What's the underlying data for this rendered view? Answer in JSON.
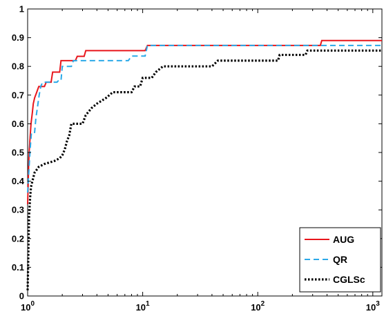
{
  "chart_data": {
    "type": "line",
    "title": "",
    "xlabel": "",
    "ylabel": "",
    "x_scale": "log",
    "xlim": [
      1,
      1200
    ],
    "ylim": [
      0,
      1
    ],
    "grid": false,
    "legend_position": "bottom-right",
    "x_ticks": [
      {
        "value": 1,
        "base": "10",
        "exp": "0"
      },
      {
        "value": 10,
        "base": "10",
        "exp": "1"
      },
      {
        "value": 100,
        "base": "10",
        "exp": "2"
      },
      {
        "value": 1000,
        "base": "10",
        "exp": "3"
      }
    ],
    "y_ticks": [
      {
        "value": 0,
        "label": "0"
      },
      {
        "value": 0.1,
        "label": "0.1"
      },
      {
        "value": 0.2,
        "label": "0.2"
      },
      {
        "value": 0.3,
        "label": "0.3"
      },
      {
        "value": 0.4,
        "label": "0.4"
      },
      {
        "value": 0.5,
        "label": "0.5"
      },
      {
        "value": 0.6,
        "label": "0.6"
      },
      {
        "value": 0.7,
        "label": "0.7"
      },
      {
        "value": 0.8,
        "label": "0.8"
      },
      {
        "value": 0.9,
        "label": "0.9"
      },
      {
        "value": 1,
        "label": "1"
      }
    ],
    "series": [
      {
        "name": "AUG",
        "color": "#e8151b",
        "dash": "solid",
        "points": [
          [
            1,
            0.32
          ],
          [
            1.01,
            0.38
          ],
          [
            1.02,
            0.45
          ],
          [
            1.03,
            0.5
          ],
          [
            1.05,
            0.55
          ],
          [
            1.07,
            0.6
          ],
          [
            1.1,
            0.64
          ],
          [
            1.12,
            0.67
          ],
          [
            1.15,
            0.69
          ],
          [
            1.2,
            0.71
          ],
          [
            1.25,
            0.73
          ],
          [
            1.4,
            0.73
          ],
          [
            1.45,
            0.745
          ],
          [
            1.6,
            0.745
          ],
          [
            1.65,
            0.78
          ],
          [
            1.9,
            0.78
          ],
          [
            1.95,
            0.82
          ],
          [
            2.4,
            0.82
          ],
          [
            2.5,
            0.82
          ],
          [
            2.6,
            0.82
          ],
          [
            2.7,
            0.835
          ],
          [
            3.1,
            0.835
          ],
          [
            3.2,
            0.855
          ],
          [
            10.5,
            0.855
          ],
          [
            11,
            0.873
          ],
          [
            350,
            0.873
          ],
          [
            360,
            0.89
          ],
          [
            1200,
            0.89
          ]
        ]
      },
      {
        "name": "QR",
        "color": "#2aa9e8",
        "dash": "dashed",
        "points": [
          [
            1,
            0.36
          ],
          [
            1.02,
            0.42
          ],
          [
            1.04,
            0.48
          ],
          [
            1.06,
            0.53
          ],
          [
            1.08,
            0.57
          ],
          [
            1.15,
            0.57
          ],
          [
            1.18,
            0.62
          ],
          [
            1.22,
            0.66
          ],
          [
            1.26,
            0.7
          ],
          [
            1.3,
            0.73
          ],
          [
            1.35,
            0.745
          ],
          [
            1.8,
            0.745
          ],
          [
            1.85,
            0.75
          ],
          [
            1.95,
            0.75
          ],
          [
            2,
            0.8
          ],
          [
            2.4,
            0.8
          ],
          [
            2.5,
            0.82
          ],
          [
            7.5,
            0.82
          ],
          [
            8,
            0.836
          ],
          [
            10.5,
            0.836
          ],
          [
            11,
            0.873
          ],
          [
            1200,
            0.873
          ]
        ]
      },
      {
        "name": "CGLSc",
        "color": "#000000",
        "dash": "dotted",
        "points": [
          [
            1,
            0.02
          ],
          [
            1.01,
            0.1
          ],
          [
            1.02,
            0.2
          ],
          [
            1.03,
            0.28
          ],
          [
            1.05,
            0.34
          ],
          [
            1.07,
            0.38
          ],
          [
            1.1,
            0.4
          ],
          [
            1.15,
            0.43
          ],
          [
            1.25,
            0.45
          ],
          [
            1.4,
            0.46
          ],
          [
            1.7,
            0.47
          ],
          [
            1.9,
            0.48
          ],
          [
            2,
            0.49
          ],
          [
            2.1,
            0.51
          ],
          [
            2.2,
            0.54
          ],
          [
            2.3,
            0.56
          ],
          [
            2.4,
            0.6
          ],
          [
            3,
            0.6
          ],
          [
            3.2,
            0.63
          ],
          [
            3.6,
            0.655
          ],
          [
            4,
            0.67
          ],
          [
            4.8,
            0.69
          ],
          [
            5.5,
            0.71
          ],
          [
            8,
            0.71
          ],
          [
            8.5,
            0.73
          ],
          [
            9.5,
            0.73
          ],
          [
            10,
            0.76
          ],
          [
            12,
            0.76
          ],
          [
            13,
            0.78
          ],
          [
            15,
            0.8
          ],
          [
            40,
            0.8
          ],
          [
            45,
            0.82
          ],
          [
            150,
            0.82
          ],
          [
            155,
            0.84
          ],
          [
            260,
            0.84
          ],
          [
            270,
            0.855
          ],
          [
            1200,
            0.855
          ]
        ]
      }
    ]
  }
}
